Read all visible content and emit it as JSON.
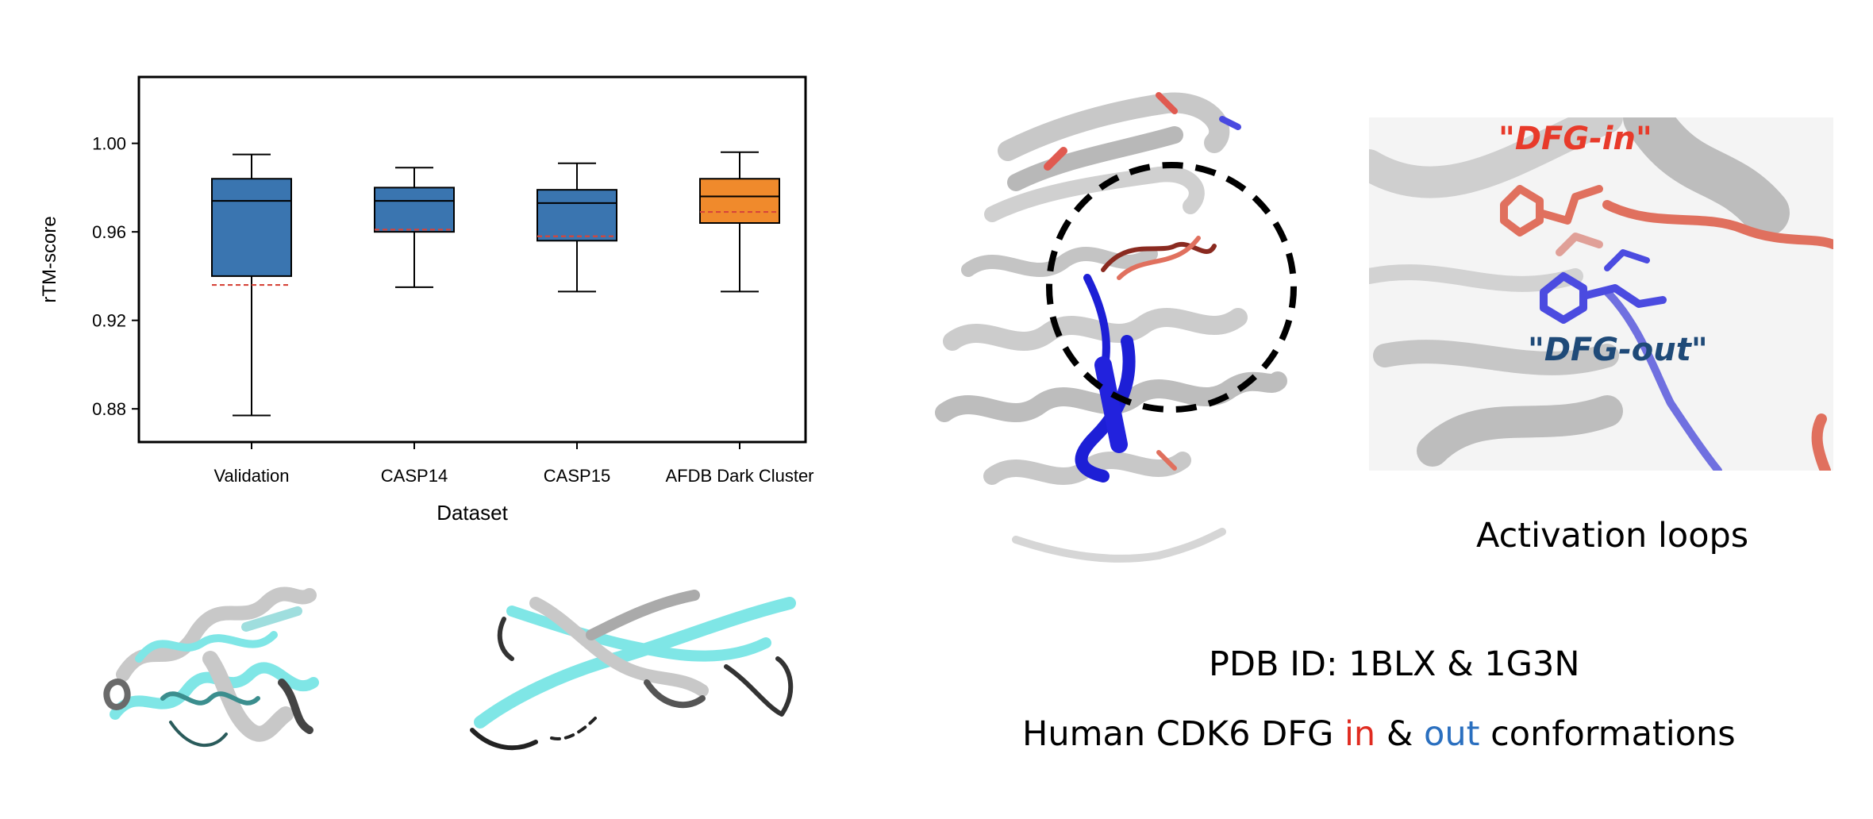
{
  "chart_data": {
    "type": "box",
    "xlabel": "Dataset",
    "ylabel": "rTM-score",
    "ylim": [
      0.865,
      1.03
    ],
    "yticks": [
      "0.88",
      "0.92",
      "0.96",
      "1.00"
    ],
    "grid": false,
    "categories": [
      "Validation",
      "CASP14",
      "CASP15",
      "AFDB Dark Cluster"
    ],
    "boxes": [
      {
        "whisker_low": 0.877,
        "q1": 0.94,
        "median": 0.974,
        "q3": 0.984,
        "whisker_high": 0.995,
        "mean": 0.936,
        "color": "#3a75b0"
      },
      {
        "whisker_low": 0.935,
        "q1": 0.96,
        "median": 0.974,
        "q3": 0.98,
        "whisker_high": 0.989,
        "mean": 0.961,
        "color": "#3a75b0"
      },
      {
        "whisker_low": 0.933,
        "q1": 0.956,
        "median": 0.973,
        "q3": 0.979,
        "whisker_high": 0.991,
        "mean": 0.958,
        "color": "#3a75b0"
      },
      {
        "whisker_low": 0.933,
        "q1": 0.964,
        "median": 0.976,
        "q3": 0.984,
        "whisker_high": 0.996,
        "mean": 0.969,
        "color": "#f08a2c"
      }
    ],
    "mean_line_color": "#d6453a"
  },
  "right_panel": {
    "dfg_in_label": "\"DFG-in\"",
    "dfg_out_label": "\"DFG-out\"",
    "activation_caption": "Activation loops",
    "pdb_caption": "PDB ID: 1BLX & 1G3N",
    "conf_prefix": "Human CDK6 DFG ",
    "conf_in": "in",
    "conf_amp": " & ",
    "conf_out": "out",
    "conf_suffix": " conformations",
    "colors": {
      "in": "#e02b20",
      "out": "#2a6fbf",
      "dfg_in_label": "#e83a2a",
      "dfg_out_label": "#1f4a78"
    }
  },
  "structures": {
    "ribbon_colors": {
      "gray": "#c8c8c8",
      "cyan": "#7fe6e6",
      "dark": "#222222",
      "red": "#e0705e",
      "blue": "#1d1fd6"
    }
  }
}
